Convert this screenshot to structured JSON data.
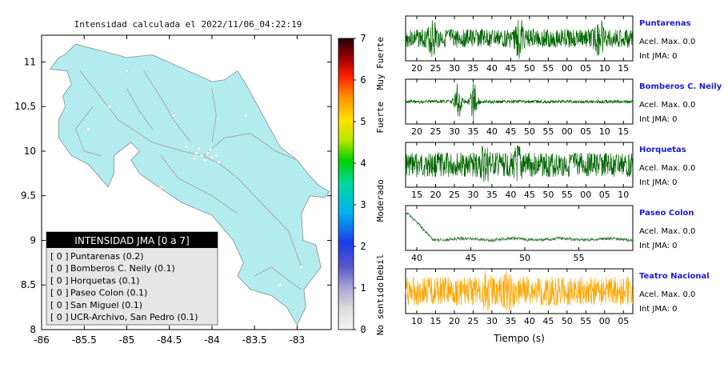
{
  "map": {
    "title": "Intensidad calculada el 2022/11/06_04:22:19",
    "xticks": [
      "-86",
      "-85.5",
      "-85",
      "-84.5",
      "-84",
      "-83.5",
      "-83"
    ],
    "yticks": [
      "11",
      "10.5",
      "10",
      "9.5",
      "9",
      "8.5",
      "8"
    ],
    "xlim": [
      -86,
      -82.6
    ],
    "ylim": [
      8,
      11.3
    ],
    "land_color": "#b3ecee"
  },
  "colorbar": {
    "ticks": [
      "0",
      "1",
      "2",
      "3",
      "4",
      "5",
      "6",
      "7"
    ],
    "labels": [
      "No sentido",
      "Debil",
      "Moderado",
      "Fuerte",
      "Muy Fuerte"
    ]
  },
  "legend": {
    "title": "INTENSIDAD JMA [0 a 7]",
    "items": [
      {
        "mark": "[ 0 ]",
        "label": "Puntarenas (0.2)"
      },
      {
        "mark": "[ 0 ]",
        "label": "Bomberos C. Neily (0.1)"
      },
      {
        "mark": "[ 0 ]",
        "label": "Horquetas (0.1)"
      },
      {
        "mark": "[ 0 ]",
        "label": "Paseo Colon (0.1)"
      },
      {
        "mark": "[ 0 ]",
        "label": "San Miguel (0.1)"
      },
      {
        "mark": "[ 0 ]",
        "label": "UCR-Archivo, San Pedro (0.1)"
      }
    ]
  },
  "chart_data": [
    {
      "type": "scatter",
      "title": "Intensidad calculada el 2022/11/06_04:22:19",
      "xlabel": "",
      "ylabel": "",
      "xlim": [
        -86,
        -82.6
      ],
      "ylim": [
        8,
        11.3
      ],
      "series": [
        {
          "name": "Puntarenas",
          "intensity": 0.2,
          "jma_class": 0
        },
        {
          "name": "Bomberos C. Neily",
          "intensity": 0.1,
          "jma_class": 0
        },
        {
          "name": "Horquetas",
          "intensity": 0.1,
          "jma_class": 0
        },
        {
          "name": "Paseo Colon",
          "intensity": 0.1,
          "jma_class": 0
        },
        {
          "name": "San Miguel",
          "intensity": 0.1,
          "jma_class": 0
        },
        {
          "name": "UCR-Archivo, San Pedro",
          "intensity": 0.1,
          "jma_class": 0
        }
      ]
    },
    {
      "type": "line",
      "xlabel": "Tiempo (s)",
      "panels": [
        {
          "name": "Puntarenas",
          "accel_label": "Acel. Max. 0.0",
          "jma_label": "Int JMA: 0",
          "color": "#006400",
          "amplitude": 0.45,
          "bursts": [
            0.12,
            0.5,
            0.85
          ],
          "xticks": [
            "20",
            "25",
            "30",
            "35",
            "40",
            "45",
            "50",
            "55",
            "00",
            "05",
            "10",
            "15"
          ]
        },
        {
          "name": "Bomberos C. Neily",
          "accel_label": "Acel. Max. 0.0",
          "jma_label": "Int JMA: 0",
          "color": "#006400",
          "amplitude": 0.08,
          "bursts": [
            0.23,
            0.3
          ],
          "xticks": [
            "20",
            "25",
            "30",
            "35",
            "40",
            "45",
            "50",
            "55",
            "00",
            "05",
            "10",
            "15"
          ]
        },
        {
          "name": "Horquetas",
          "accel_label": "Acel. Max. 0.0",
          "jma_label": "Int JMA: 0",
          "color": "#006400",
          "amplitude": 0.6,
          "bursts": [
            0.35,
            0.5
          ],
          "xticks": [
            "15",
            "20",
            "25",
            "30",
            "35",
            "40",
            "45",
            "50",
            "55",
            "00",
            "05",
            "10"
          ]
        },
        {
          "name": "Paseo Colon",
          "accel_label": "Acel. Max. 0.0",
          "jma_label": "Int JMA: 0",
          "color": "#2e7d32",
          "amplitude": 0.1,
          "bursts": [],
          "xticks": [
            "40",
            "45",
            "50",
            "55"
          ]
        },
        {
          "name": "Teatro Nacional",
          "accel_label": "Acel. Max. 0.0",
          "jma_label": "Int JMA: 0",
          "color": "#ffa500",
          "amplitude": 0.7,
          "bursts": [
            0.35,
            0.45
          ],
          "xticks": [
            "10",
            "15",
            "20",
            "25",
            "30",
            "35",
            "40",
            "45",
            "50",
            "55",
            "00",
            "05"
          ]
        }
      ]
    }
  ]
}
